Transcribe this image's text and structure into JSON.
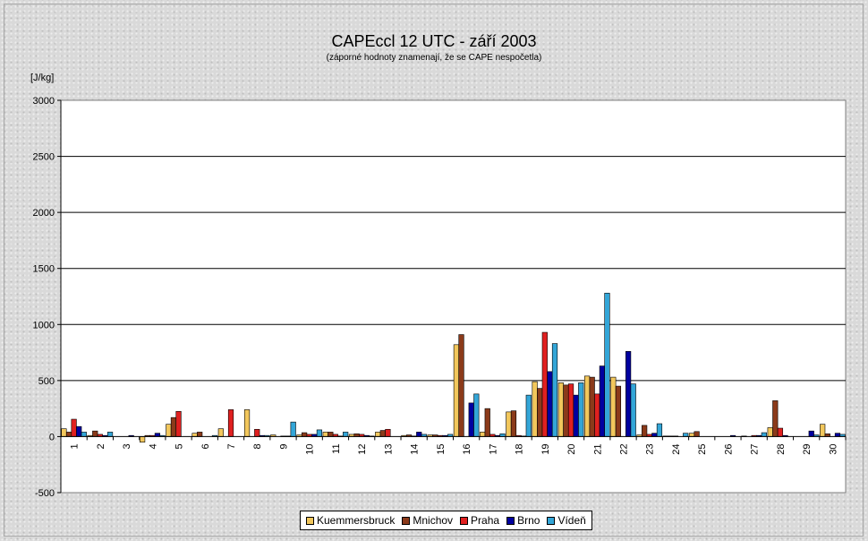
{
  "chart_data": {
    "type": "bar",
    "title": "CAPEccl 12 UTC - září 2003",
    "subtitle": "(záporné hodnoty znamenají, že se CAPE nespočetla)",
    "ylabel": "[J/kg]",
    "ylim": [
      -500,
      3000
    ],
    "yticks": [
      -500,
      0,
      500,
      1000,
      1500,
      2000,
      2500,
      3000
    ],
    "grid": true,
    "legend_position": "bottom",
    "categories": [
      "1",
      "2",
      "3",
      "4",
      "5",
      "6",
      "7",
      "8",
      "9",
      "10",
      "11",
      "12",
      "13",
      "14",
      "15",
      "16",
      "17",
      "18",
      "19",
      "20",
      "21",
      "22",
      "23",
      "24",
      "25",
      "26",
      "27",
      "28",
      "29",
      "30"
    ],
    "series": [
      {
        "name": "Kuemmersbruck",
        "color": "#F2C75C",
        "values": [
          70,
          10,
          0,
          -50,
          110,
          30,
          70,
          240,
          15,
          15,
          40,
          20,
          40,
          10,
          15,
          820,
          40,
          220,
          490,
          480,
          540,
          530,
          15,
          5,
          30,
          0,
          5,
          80,
          0,
          110
        ]
      },
      {
        "name": "Mnichov",
        "color": "#8B3A1A",
        "values": [
          40,
          50,
          0,
          10,
          170,
          40,
          0,
          0,
          0,
          35,
          40,
          25,
          55,
          15,
          15,
          910,
          250,
          230,
          430,
          460,
          530,
          450,
          100,
          5,
          45,
          0,
          0,
          320,
          0,
          25
        ]
      },
      {
        "name": "Praha",
        "color": "#E02020",
        "values": [
          155,
          20,
          0,
          10,
          225,
          0,
          240,
          65,
          5,
          20,
          20,
          20,
          65,
          5,
          10,
          0,
          20,
          10,
          930,
          470,
          380,
          0,
          20,
          5,
          0,
          0,
          10,
          75,
          0,
          0
        ]
      },
      {
        "name": "Brno",
        "color": "#0000A0",
        "values": [
          90,
          10,
          10,
          30,
          0,
          0,
          0,
          10,
          5,
          20,
          5,
          10,
          0,
          40,
          10,
          300,
          10,
          5,
          580,
          370,
          630,
          760,
          30,
          0,
          0,
          10,
          10,
          10,
          50,
          30
        ]
      },
      {
        "name": "Vídeň",
        "color": "#33A6D8",
        "values": [
          40,
          40,
          0,
          10,
          0,
          10,
          0,
          10,
          130,
          60,
          40,
          5,
          0,
          20,
          20,
          380,
          25,
          370,
          830,
          480,
          1280,
          470,
          115,
          30,
          0,
          0,
          35,
          0,
          15,
          20
        ]
      }
    ]
  }
}
